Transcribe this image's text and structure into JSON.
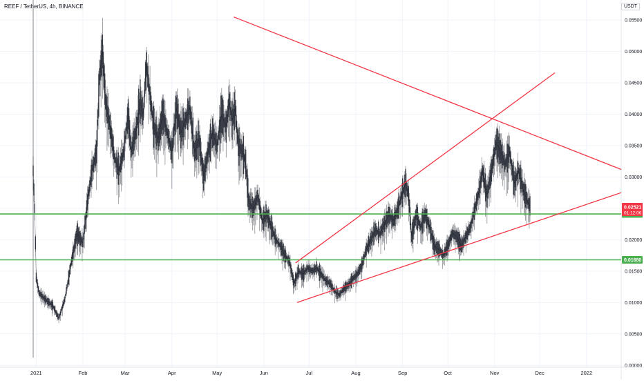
{
  "header": {
    "title": "REEF / TetherUS, 4h, BINANCE",
    "currency": "USDT"
  },
  "chart_data": {
    "type": "candlestick",
    "title": "REEF / TetherUS, 4h, BINANCE",
    "symbol": "REEF / TetherUS",
    "interval": "4h",
    "exchange": "BINANCE",
    "currency": "USDT",
    "x_tick_labels": [
      "2021",
      "Feb",
      "Mar",
      "Apr",
      "May",
      "Jun",
      "Jul",
      "Aug",
      "Sep",
      "Oct",
      "Nov",
      "Dec",
      "2022"
    ],
    "x_tick_dates": [
      "2021-01-01",
      "2021-02-01",
      "2021-03-01",
      "2021-04-01",
      "2021-05-01",
      "2021-06-01",
      "2021-07-01",
      "2021-08-01",
      "2021-09-01",
      "2021-10-01",
      "2021-11-01",
      "2021-12-01",
      "2022-01-01"
    ],
    "y_tick_labels": [
      "0.00000",
      "0.00500",
      "0.01000",
      "0.01500",
      "0.02000",
      "0.02500",
      "0.03000",
      "0.03500",
      "0.04000",
      "0.04500",
      "0.05000",
      "0.05500"
    ],
    "y_ticks": [
      0,
      0.005,
      0.01,
      0.015,
      0.02,
      0.025,
      0.03,
      0.035,
      0.04,
      0.045,
      0.05,
      0.055
    ],
    "ylim": [
      -0.0003,
      0.0582
    ],
    "xlim": [
      "2020-12-08",
      "2022-01-24"
    ],
    "grid": true,
    "price_path": [
      [
        "2020-12-30",
        0.031
      ],
      [
        "2020-12-31",
        0.025
      ],
      [
        "2021-01-01",
        0.014
      ],
      [
        "2021-01-03",
        0.0115
      ],
      [
        "2021-01-07",
        0.0105
      ],
      [
        "2021-01-12",
        0.0095
      ],
      [
        "2021-01-16",
        0.0075
      ],
      [
        "2021-01-20",
        0.0105
      ],
      [
        "2021-01-24",
        0.016
      ],
      [
        "2021-01-28",
        0.021
      ],
      [
        "2021-02-01",
        0.0195
      ],
      [
        "2021-02-04",
        0.026
      ],
      [
        "2021-02-07",
        0.031
      ],
      [
        "2021-02-10",
        0.034
      ],
      [
        "2021-02-12",
        0.046
      ],
      [
        "2021-02-14",
        0.05
      ],
      [
        "2021-02-16",
        0.042
      ],
      [
        "2021-02-19",
        0.038
      ],
      [
        "2021-02-22",
        0.033
      ],
      [
        "2021-02-25",
        0.031
      ],
      [
        "2021-02-28",
        0.034
      ],
      [
        "2021-03-03",
        0.04
      ],
      [
        "2021-03-05",
        0.034
      ],
      [
        "2021-03-08",
        0.037
      ],
      [
        "2021-03-11",
        0.042
      ],
      [
        "2021-03-13",
        0.04
      ],
      [
        "2021-03-15",
        0.048
      ],
      [
        "2021-03-17",
        0.044
      ],
      [
        "2021-03-20",
        0.038
      ],
      [
        "2021-03-23",
        0.036
      ],
      [
        "2021-03-26",
        0.04
      ],
      [
        "2021-03-29",
        0.037
      ],
      [
        "2021-04-01",
        0.034
      ],
      [
        "2021-04-04",
        0.041
      ],
      [
        "2021-04-07",
        0.037
      ],
      [
        "2021-04-10",
        0.039
      ],
      [
        "2021-04-13",
        0.041
      ],
      [
        "2021-04-16",
        0.034
      ],
      [
        "2021-04-19",
        0.036
      ],
      [
        "2021-04-22",
        0.03
      ],
      [
        "2021-04-25",
        0.034
      ],
      [
        "2021-04-28",
        0.037
      ],
      [
        "2021-05-01",
        0.035
      ],
      [
        "2021-05-04",
        0.04
      ],
      [
        "2021-05-07",
        0.038
      ],
      [
        "2021-05-09",
        0.042
      ],
      [
        "2021-05-11",
        0.039
      ],
      [
        "2021-05-13",
        0.041
      ],
      [
        "2021-05-15",
        0.035
      ],
      [
        "2021-05-18",
        0.034
      ],
      [
        "2021-05-20",
        0.032
      ],
      [
        "2021-05-22",
        0.026
      ],
      [
        "2021-05-25",
        0.025
      ],
      [
        "2021-05-28",
        0.027
      ],
      [
        "2021-05-31",
        0.023
      ],
      [
        "2021-06-03",
        0.024
      ],
      [
        "2021-06-06",
        0.022
      ],
      [
        "2021-06-09",
        0.02
      ],
      [
        "2021-06-12",
        0.019
      ],
      [
        "2021-06-15",
        0.0175
      ],
      [
        "2021-06-18",
        0.0165
      ],
      [
        "2021-06-21",
        0.013
      ],
      [
        "2021-06-24",
        0.015
      ],
      [
        "2021-06-27",
        0.0145
      ],
      [
        "2021-06-30",
        0.0155
      ],
      [
        "2021-07-03",
        0.015
      ],
      [
        "2021-07-06",
        0.0155
      ],
      [
        "2021-07-09",
        0.0145
      ],
      [
        "2021-07-12",
        0.0135
      ],
      [
        "2021-07-15",
        0.013
      ],
      [
        "2021-07-18",
        0.0118
      ],
      [
        "2021-07-21",
        0.0112
      ],
      [
        "2021-07-24",
        0.0122
      ],
      [
        "2021-07-27",
        0.0128
      ],
      [
        "2021-07-30",
        0.0138
      ],
      [
        "2021-08-02",
        0.0145
      ],
      [
        "2021-08-05",
        0.016
      ],
      [
        "2021-08-08",
        0.0185
      ],
      [
        "2021-08-11",
        0.02
      ],
      [
        "2021-08-14",
        0.0215
      ],
      [
        "2021-08-17",
        0.021
      ],
      [
        "2021-08-20",
        0.0225
      ],
      [
        "2021-08-23",
        0.024
      ],
      [
        "2021-08-26",
        0.023
      ],
      [
        "2021-08-29",
        0.025
      ],
      [
        "2021-09-01",
        0.0275
      ],
      [
        "2021-09-03",
        0.029
      ],
      [
        "2021-09-05",
        0.027
      ],
      [
        "2021-09-07",
        0.0205
      ],
      [
        "2021-09-10",
        0.024
      ],
      [
        "2021-09-13",
        0.022
      ],
      [
        "2021-09-16",
        0.024
      ],
      [
        "2021-09-19",
        0.022
      ],
      [
        "2021-09-22",
        0.019
      ],
      [
        "2021-09-25",
        0.0185
      ],
      [
        "2021-09-28",
        0.0175
      ],
      [
        "2021-10-01",
        0.019
      ],
      [
        "2021-10-04",
        0.021
      ],
      [
        "2021-10-07",
        0.0205
      ],
      [
        "2021-10-10",
        0.019
      ],
      [
        "2021-10-13",
        0.0205
      ],
      [
        "2021-10-16",
        0.022
      ],
      [
        "2021-10-19",
        0.025
      ],
      [
        "2021-10-22",
        0.028
      ],
      [
        "2021-10-24",
        0.031
      ],
      [
        "2021-10-27",
        0.027
      ],
      [
        "2021-10-30",
        0.031
      ],
      [
        "2021-11-02",
        0.0355
      ],
      [
        "2021-11-05",
        0.034
      ],
      [
        "2021-11-08",
        0.032
      ],
      [
        "2021-11-11",
        0.034
      ],
      [
        "2021-11-14",
        0.029
      ],
      [
        "2021-11-17",
        0.031
      ],
      [
        "2021-11-20",
        0.028
      ],
      [
        "2021-11-23",
        0.026
      ],
      [
        "2021-11-25",
        0.0252
      ]
    ],
    "current_price": {
      "value": 0.02521,
      "label": "0.02521",
      "countdown": "01:12:06",
      "color": "#f23645"
    },
    "horizontal_lines": [
      {
        "value": 0.02411,
        "label": "0.02411",
        "color": "#4caf50"
      },
      {
        "value": 0.0168,
        "label": "0.01680",
        "color": "#4caf50"
      }
    ],
    "trend_lines": [
      {
        "role": "descending-resistance",
        "color": "#f23645",
        "from": [
          "2021-05-12",
          0.0555
        ],
        "to": [
          "2022-01-24",
          0.0312
        ]
      },
      {
        "role": "channel-upper",
        "color": "#f23645",
        "from": [
          "2021-06-22",
          0.0163
        ],
        "to": [
          "2021-12-11",
          0.0466
        ]
      },
      {
        "role": "channel-lower",
        "color": "#f23645",
        "from": [
          "2021-06-23",
          0.01
        ],
        "to": [
          "2022-01-24",
          0.0275
        ]
      }
    ],
    "colors": {
      "candle": "#131722",
      "grid": "#f0f3fa",
      "axis_text": "#131722",
      "axis_border": "#e0e3eb"
    }
  }
}
